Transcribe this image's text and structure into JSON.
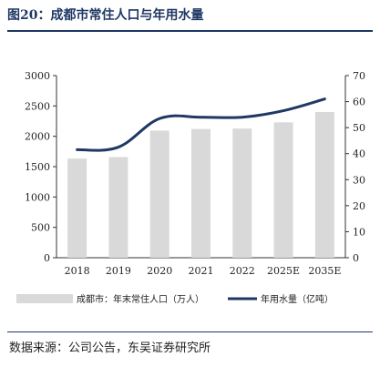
{
  "figure": {
    "title": "图20：成都市常住人口与年用水量",
    "source": "数据来源：公司公告，东吴证券研究所"
  },
  "colors": {
    "bar": "#d9d9d9",
    "line": "#1f3864",
    "title": "#1f3864"
  },
  "chart_data": {
    "type": "bar",
    "categories": [
      "2018",
      "2019",
      "2020",
      "2021",
      "2022",
      "2025E",
      "2035E"
    ],
    "series": [
      {
        "name": "成都市：年末常住人口（万人）",
        "type": "bar",
        "axis": "left",
        "values": [
          1633,
          1658,
          2094,
          2119,
          2127,
          2230,
          2400
        ]
      },
      {
        "name": "年用水量（亿吨）",
        "type": "line",
        "axis": "right",
        "values": [
          41.5,
          42.5,
          53.5,
          54,
          54,
          56.5,
          61
        ]
      }
    ],
    "y_left": {
      "min": 0,
      "max": 3000,
      "ticks": [
        "0",
        "500",
        "1000",
        "1500",
        "2000",
        "2500",
        "3000"
      ]
    },
    "y_right": {
      "min": 0,
      "max": 70,
      "ticks": [
        "0",
        "10",
        "20",
        "30",
        "40",
        "50",
        "60",
        "70"
      ]
    },
    "legend_position": "bottom",
    "grid": false
  }
}
